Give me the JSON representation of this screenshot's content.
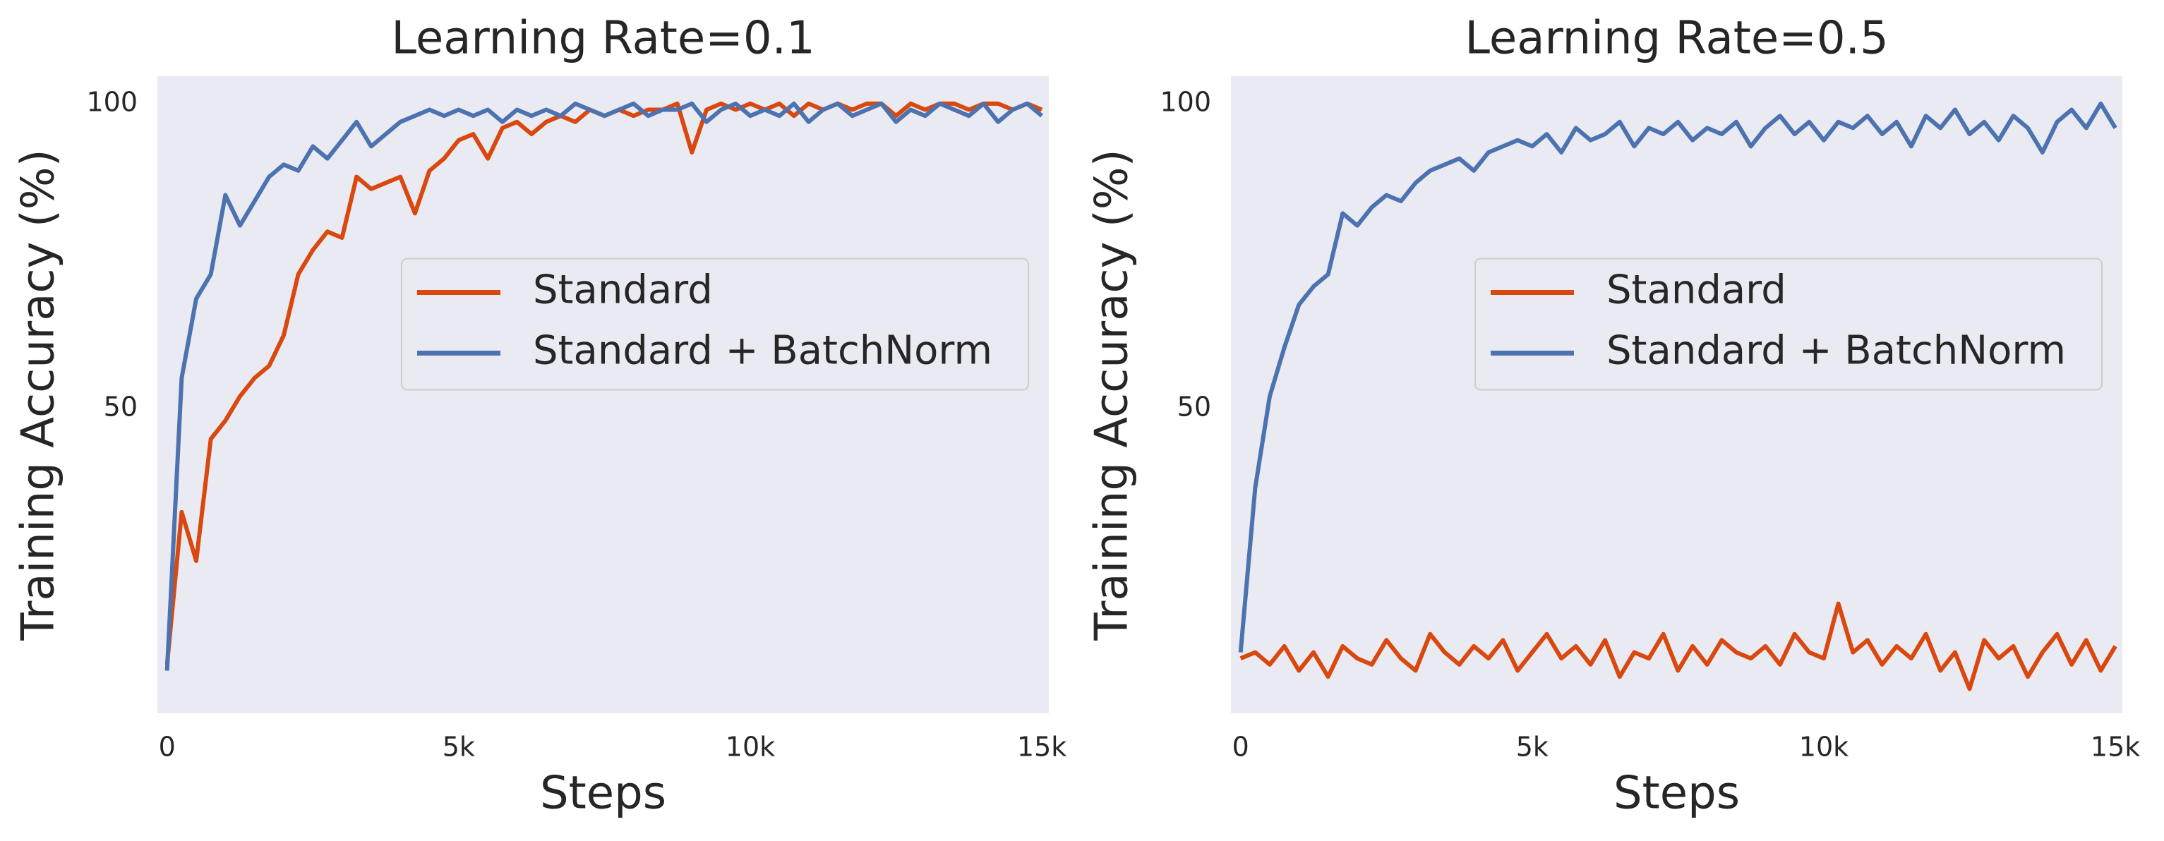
{
  "chart_data": [
    {
      "type": "line",
      "title": "Learning Rate=0.1",
      "xlabel": "Steps",
      "ylabel": "Training Accuracy (%)",
      "x": [
        0,
        250,
        500,
        750,
        1000,
        1250,
        1500,
        1750,
        2000,
        2250,
        2500,
        2750,
        3000,
        3250,
        3500,
        3750,
        4000,
        4250,
        4500,
        4750,
        5000,
        5250,
        5500,
        5750,
        6000,
        6250,
        6500,
        6750,
        7000,
        7250,
        7500,
        7750,
        8000,
        8250,
        8500,
        8750,
        9000,
        9250,
        9500,
        9750,
        10000,
        10250,
        10500,
        10750,
        11000,
        11250,
        11500,
        11750,
        12000,
        12250,
        12500,
        12750,
        13000,
        13250,
        13500,
        13750,
        14000,
        14250,
        14500,
        14750,
        15000
      ],
      "series": [
        {
          "name": "Standard",
          "color": "#d9480f",
          "values": [
            8,
            33,
            25,
            45,
            48,
            52,
            55,
            57,
            62,
            72,
            76,
            79,
            78,
            88,
            86,
            87,
            88,
            82,
            89,
            91,
            94,
            95,
            91,
            96,
            97,
            95,
            97,
            98,
            97,
            99,
            98,
            99,
            98,
            99,
            99,
            100,
            92,
            99,
            100,
            99,
            100,
            99,
            100,
            98,
            100,
            99,
            100,
            99,
            100,
            100,
            98,
            100,
            99,
            100,
            100,
            99,
            100,
            100,
            99,
            100,
            99
          ]
        },
        {
          "name": "Standard + BatchNorm",
          "color": "#4c72b0",
          "values": [
            7,
            55,
            68,
            72,
            85,
            80,
            84,
            88,
            90,
            89,
            93,
            91,
            94,
            97,
            93,
            95,
            97,
            98,
            99,
            98,
            99,
            98,
            99,
            97,
            99,
            98,
            99,
            98,
            100,
            99,
            98,
            99,
            100,
            98,
            99,
            99,
            100,
            97,
            99,
            100,
            98,
            99,
            98,
            100,
            97,
            99,
            100,
            98,
            99,
            100,
            97,
            99,
            98,
            100,
            99,
            98,
            100,
            97,
            99,
            100,
            98
          ]
        }
      ],
      "xlim": [
        -166,
        15120
      ],
      "ylim": [
        0,
        104.5
      ],
      "xticks": [
        0,
        {
          "value": 5000,
          "label": "5k"
        },
        {
          "value": 10000,
          "label": "10k"
        },
        {
          "value": 15000,
          "label": "15k"
        }
      ],
      "yticks": [
        50,
        100
      ],
      "grid": false,
      "legend": "center right",
      "background": "#eaeaf2"
    },
    {
      "type": "line",
      "title": "Learning Rate=0.5",
      "xlabel": "Steps",
      "ylabel": "Training Accuracy (%)",
      "x": [
        0,
        250,
        500,
        750,
        1000,
        1250,
        1500,
        1750,
        2000,
        2250,
        2500,
        2750,
        3000,
        3250,
        3500,
        3750,
        4000,
        4250,
        4500,
        4750,
        5000,
        5250,
        5500,
        5750,
        6000,
        6250,
        6500,
        6750,
        7000,
        7250,
        7500,
        7750,
        8000,
        8250,
        8500,
        8750,
        9000,
        9250,
        9500,
        9750,
        10000,
        10250,
        10500,
        10750,
        11000,
        11250,
        11500,
        11750,
        12000,
        12250,
        12500,
        12750,
        13000,
        13250,
        13500,
        13750,
        14000,
        14250,
        14500,
        14750,
        15000
      ],
      "series": [
        {
          "name": "Standard",
          "color": "#d9480f",
          "values": [
            9,
            10,
            8,
            11,
            7,
            10,
            6,
            11,
            9,
            8,
            12,
            9,
            7,
            13,
            10,
            8,
            11,
            9,
            12,
            7,
            10,
            13,
            9,
            11,
            8,
            12,
            6,
            10,
            9,
            13,
            7,
            11,
            8,
            12,
            10,
            9,
            11,
            8,
            13,
            10,
            9,
            18,
            10,
            12,
            8,
            11,
            9,
            13,
            7,
            10,
            4,
            12,
            9,
            11,
            6,
            10,
            13,
            8,
            12,
            7,
            11
          ]
        },
        {
          "name": "Standard + BatchNorm",
          "color": "#4c72b0",
          "values": [
            10,
            37,
            52,
            60,
            67,
            70,
            72,
            82,
            80,
            83,
            85,
            84,
            87,
            89,
            90,
            91,
            89,
            92,
            93,
            94,
            93,
            95,
            92,
            96,
            94,
            95,
            97,
            93,
            96,
            95,
            97,
            94,
            96,
            95,
            97,
            93,
            96,
            98,
            95,
            97,
            94,
            97,
            96,
            98,
            95,
            97,
            93,
            98,
            96,
            99,
            95,
            97,
            94,
            98,
            96,
            92,
            97,
            99,
            96,
            100,
            96
          ]
        }
      ],
      "xlim": [
        -166,
        15120
      ],
      "ylim": [
        0,
        104.5
      ],
      "xticks": [
        0,
        {
          "value": 5000,
          "label": "5k"
        },
        {
          "value": 10000,
          "label": "10k"
        },
        {
          "value": 15000,
          "label": "15k"
        }
      ],
      "yticks": [
        50,
        100
      ],
      "grid": false,
      "legend": "center right",
      "background": "#eaeaf2"
    }
  ]
}
